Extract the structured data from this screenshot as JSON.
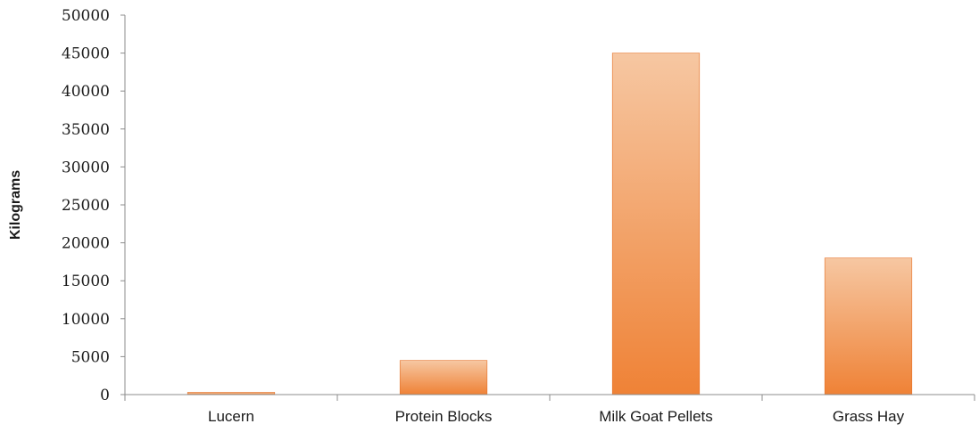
{
  "chart_data": {
    "type": "bar",
    "categories": [
      "Lucern",
      "Protein Blocks",
      "Milk Goat Pellets",
      "Grass Hay"
    ],
    "values": [
      300,
      4500,
      45000,
      18000
    ],
    "ylabel": "Kilograms",
    "ylim": [
      0,
      50000
    ],
    "yticks": [
      "0",
      "5000",
      "10000",
      "15000",
      "20000",
      "25000",
      "30000",
      "35000",
      "40000",
      "45000",
      "50000"
    ],
    "grid": false,
    "legend": "none",
    "colors": {
      "bar_top": "#f6c7a2",
      "bar_bottom": "#ef8236",
      "bar_edge": "#e5722a"
    }
  }
}
